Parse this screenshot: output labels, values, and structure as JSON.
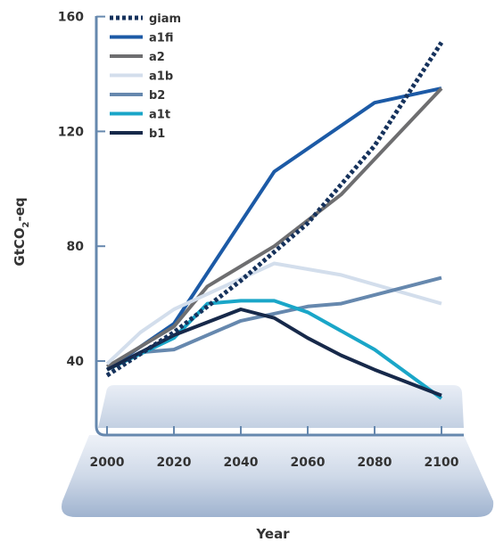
{
  "chart_data": {
    "type": "line",
    "title": "",
    "xlabel": "Year",
    "ylabel": "GtCO2-eq",
    "ylabel_parts": {
      "pre": "GtCO",
      "sub": "2",
      "post": "-eq"
    },
    "xlim": [
      2000,
      2100
    ],
    "ylim": [
      28,
      162
    ],
    "x_ticks": [
      2000,
      2020,
      2040,
      2060,
      2080,
      2100
    ],
    "y_ticks": [
      40,
      80,
      120,
      160
    ],
    "grid": false,
    "legend_position": "top-left",
    "series": [
      {
        "name": "giam",
        "color": "#16325c",
        "dashed": true,
        "x": [
          2000,
          2020,
          2040,
          2060,
          2080,
          2100
        ],
        "y": [
          35,
          50,
          68,
          88,
          115,
          151
        ]
      },
      {
        "name": "a1fi",
        "color": "#1c5aa6",
        "dashed": false,
        "x": [
          2000,
          2020,
          2050,
          2080,
          2100
        ],
        "y": [
          37,
          53,
          106,
          130,
          135
        ]
      },
      {
        "name": "a2",
        "color": "#6e6e70",
        "dashed": false,
        "x": [
          2000,
          2020,
          2030,
          2050,
          2070,
          2100
        ],
        "y": [
          38,
          52,
          66,
          80,
          98,
          135
        ]
      },
      {
        "name": "a1b",
        "color": "#d3deec",
        "dashed": false,
        "x": [
          2000,
          2010,
          2020,
          2050,
          2070,
          2100
        ],
        "y": [
          39,
          50,
          58,
          74,
          70,
          60
        ]
      },
      {
        "name": "b2",
        "color": "#6688ae",
        "dashed": false,
        "x": [
          2000,
          2010,
          2020,
          2040,
          2060,
          2070,
          2100
        ],
        "y": [
          37,
          43,
          44,
          54,
          59,
          60,
          69
        ]
      },
      {
        "name": "a1t",
        "color": "#1aa6c8",
        "dashed": false,
        "x": [
          2000,
          2020,
          2030,
          2040,
          2050,
          2060,
          2080,
          2100
        ],
        "y": [
          37,
          48,
          60,
          61,
          61,
          57,
          44,
          27
        ]
      },
      {
        "name": "b1",
        "color": "#17294a",
        "dashed": false,
        "x": [
          2000,
          2020,
          2040,
          2050,
          2060,
          2070,
          2080,
          2100
        ],
        "y": [
          37,
          49,
          58,
          55,
          48,
          42,
          37,
          28
        ]
      }
    ]
  }
}
